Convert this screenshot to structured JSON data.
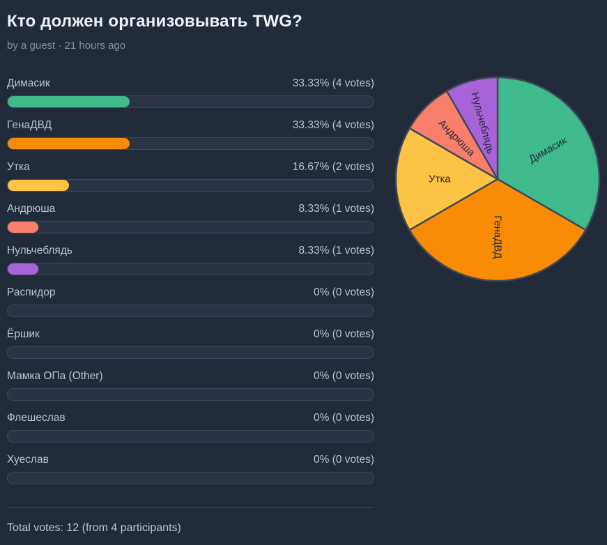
{
  "header": {
    "title": "Кто должен организовывать TWG?",
    "byline": "by a guest · 21 hours ago"
  },
  "options": [
    {
      "label": "Димасик",
      "result": "33.33% (4 votes)",
      "percent": 33.33,
      "color": "#3EBA8C"
    },
    {
      "label": "ГенаДВД",
      "result": "33.33% (4 votes)",
      "percent": 33.33,
      "color": "#FA8C05"
    },
    {
      "label": "Утка",
      "result": "16.67% (2 votes)",
      "percent": 16.67,
      "color": "#FDC345"
    },
    {
      "label": "Андрюша",
      "result": "8.33% (1 votes)",
      "percent": 8.33,
      "color": "#F97E6C"
    },
    {
      "label": "Нульчеблядь",
      "result": "8.33% (1 votes)",
      "percent": 8.33,
      "color": "#A963D8"
    },
    {
      "label": "Распидор",
      "result": "0% (0 votes)",
      "percent": 0,
      "color": null
    },
    {
      "label": "Ёршик",
      "result": "0% (0 votes)",
      "percent": 0,
      "color": null
    },
    {
      "label": "Мамка ОПа (Other)",
      "result": "0% (0 votes)",
      "percent": 0,
      "color": null
    },
    {
      "label": "Флешеслав",
      "result": "0% (0 votes)",
      "percent": 0,
      "color": null
    },
    {
      "label": "Хуеслав",
      "result": "0% (0 votes)",
      "percent": 0,
      "color": null
    }
  ],
  "footer": {
    "total_votes": "Total votes: 12 (from 4 participants)"
  },
  "chart_data": {
    "type": "pie",
    "title": "",
    "labels": [
      "Димасик",
      "ГенаДВД",
      "Утка",
      "Андрюша",
      "Нульчеблядь"
    ],
    "values": [
      4,
      4,
      2,
      1,
      1
    ],
    "percents": [
      33.33,
      33.33,
      16.67,
      8.33,
      8.33
    ],
    "colors": [
      "#3EBA8C",
      "#FA8C05",
      "#FDC345",
      "#F97E6C",
      "#A963D8"
    ],
    "start_angle": "top",
    "direction": "clockwise",
    "stroke_color": "#3F4A59",
    "label_color": "#242D3A",
    "labels_inside": true
  },
  "theme": {
    "background": "#212B3A",
    "title_color": "#EDF2F7",
    "byline_color": "#8291A5",
    "text_color": "#B7C3D4",
    "track_color": "#2A3444",
    "track_border": "#3D4A5B",
    "divider_color": "#3A4556"
  }
}
